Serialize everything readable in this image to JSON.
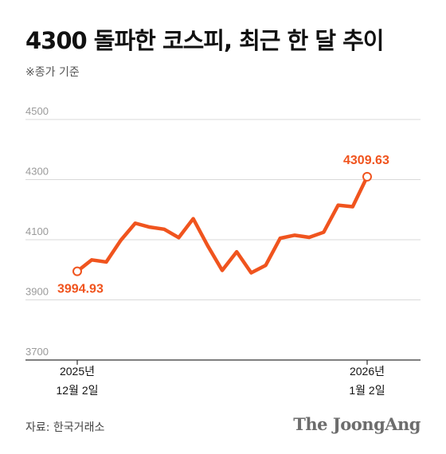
{
  "header": {
    "title": "4300 돌파한 코스피, 최근 한 달 추이",
    "subtitle": "※종가 기준"
  },
  "footer": {
    "source": "자료: 한국거래소",
    "brand": "The JoongAng"
  },
  "colors": {
    "line": "#f0541e",
    "label": "#f0541e",
    "grid": "#d9d9d9",
    "tick": "#9a9a9a"
  },
  "chart_data": {
    "type": "line",
    "title": "4300 돌파한 코스피, 최근 한 달 추이",
    "subtitle": "※종가 기준",
    "xlabel": "",
    "ylabel": "",
    "ylim": [
      3700,
      4500
    ],
    "yticks": [
      3700,
      3900,
      4100,
      4300,
      4500
    ],
    "xticks": [
      {
        "index": 0,
        "line1": "2025년",
        "line2": "12월 2일"
      },
      {
        "index": 20,
        "line1": "2026년",
        "line2": "1월 2일"
      }
    ],
    "grid": true,
    "series": [
      {
        "values": [
          3994.93,
          4033,
          4026,
          4098,
          4155,
          4142,
          4135,
          4107,
          4170,
          4080,
          3998,
          4060,
          3990,
          4015,
          4105,
          4115,
          4108,
          4125,
          4215,
          4210,
          4309.63
        ]
      }
    ],
    "annotations": [
      {
        "index": 0,
        "text": "3994.93"
      },
      {
        "index": 20,
        "text": "4309.63"
      }
    ]
  }
}
